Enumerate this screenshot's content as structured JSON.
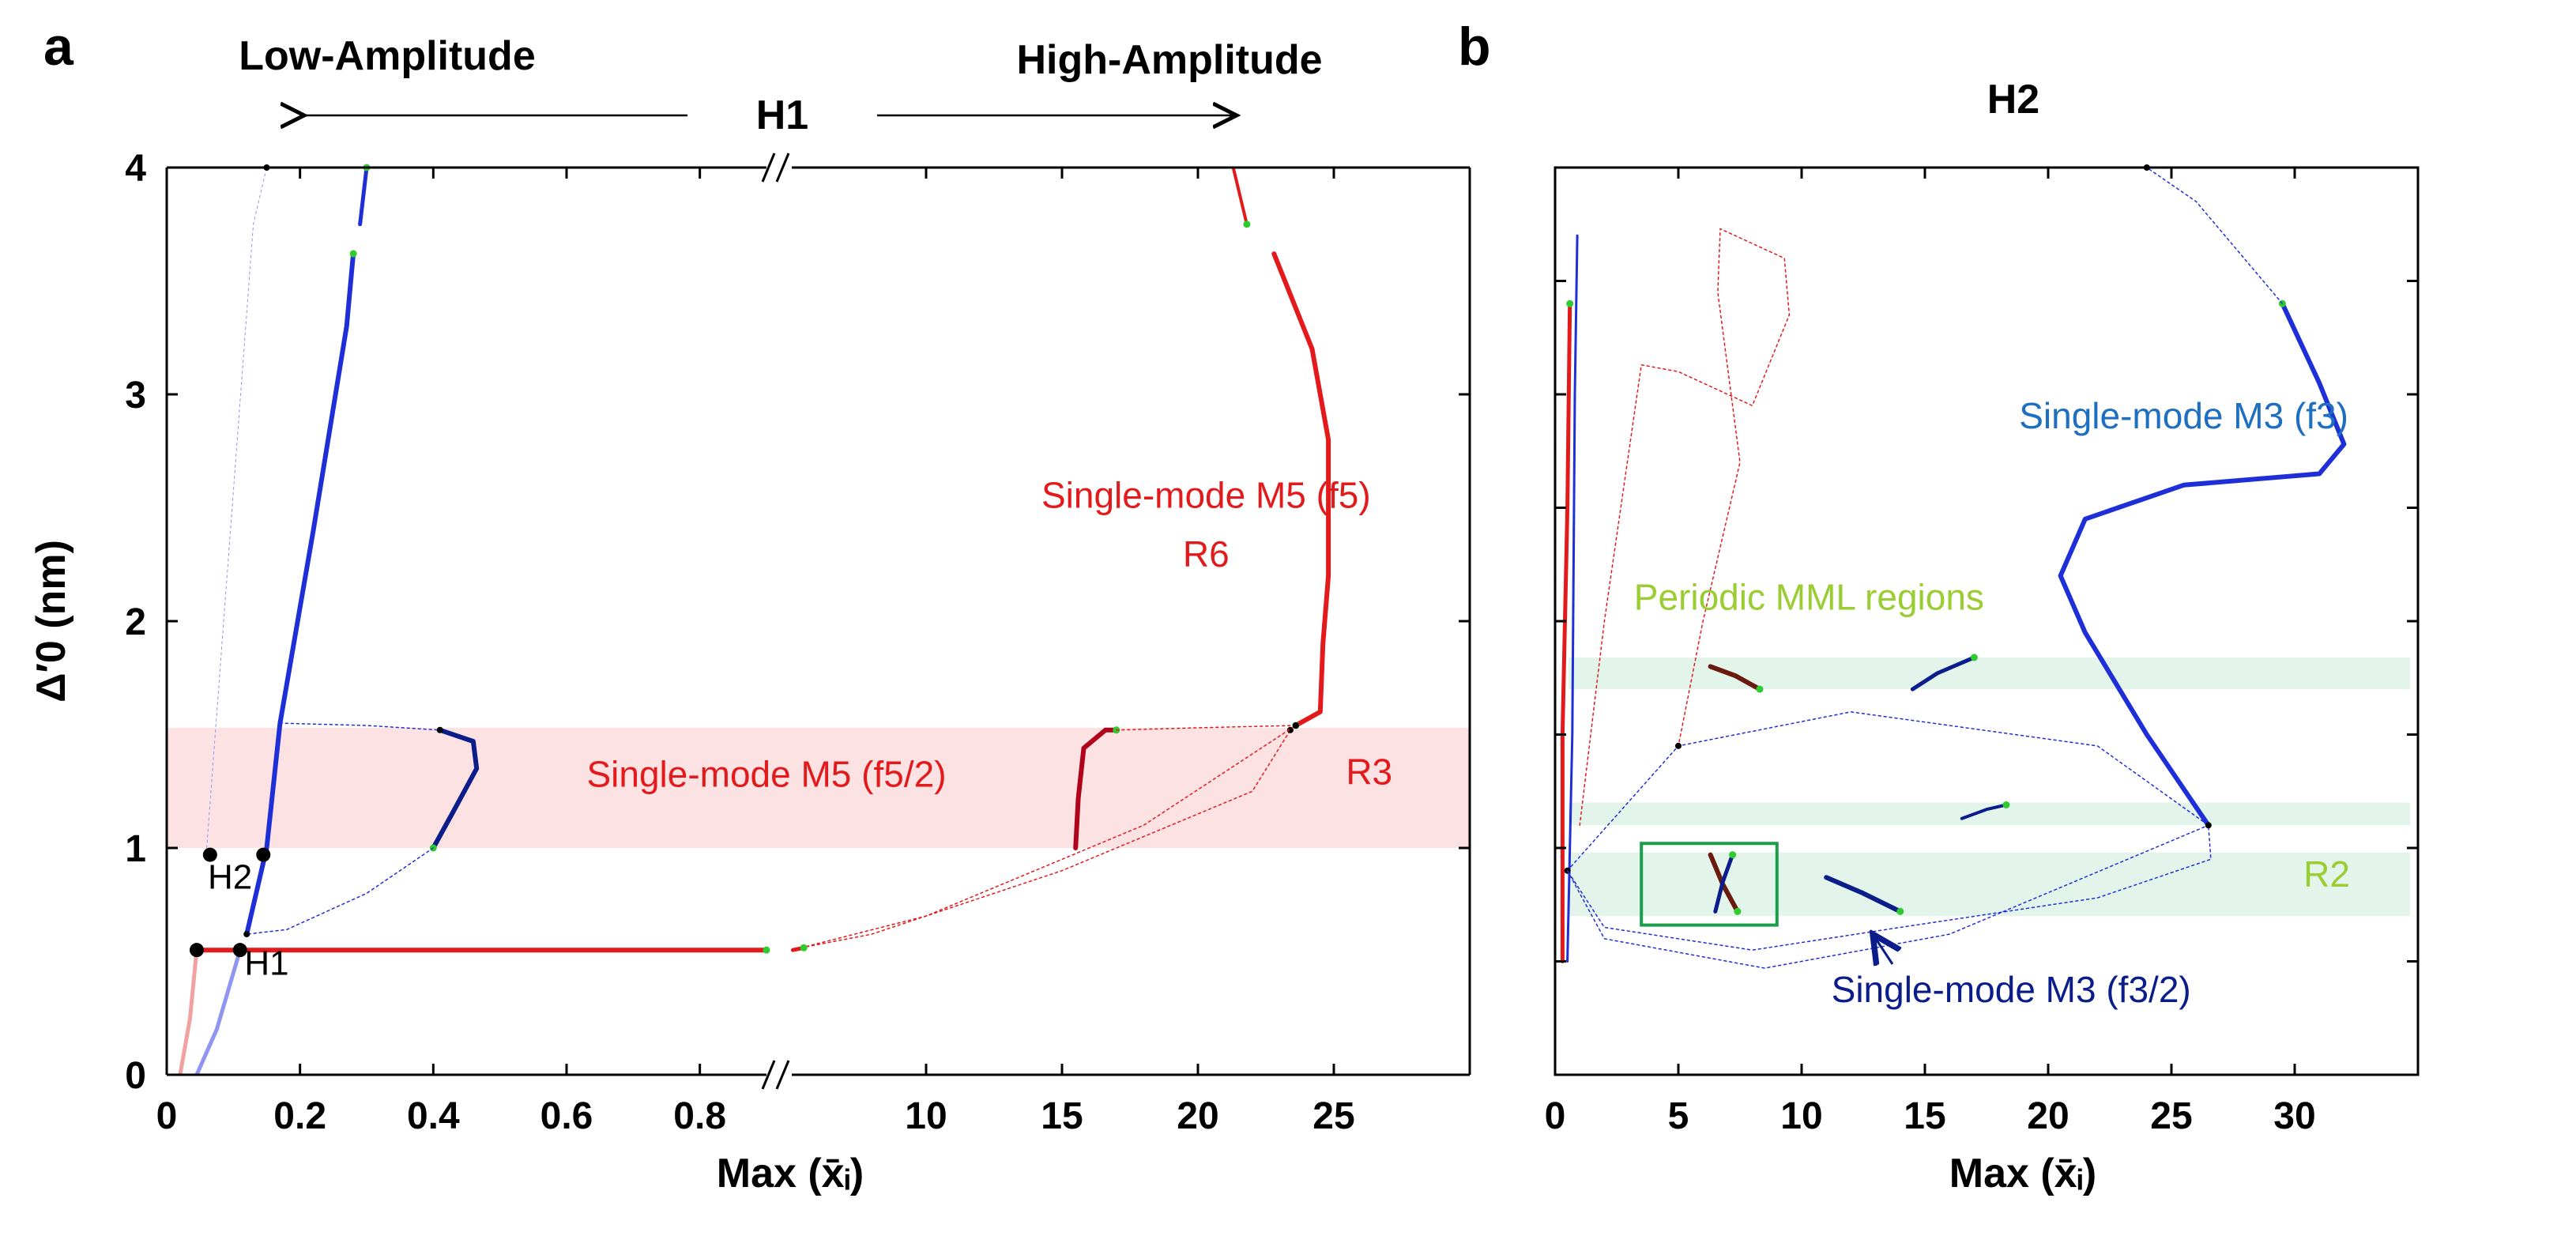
{
  "figure": {
    "panel_a_letter": "a",
    "panel_b_letter": "b",
    "low_amplitude_label": "Low-Amplitude",
    "high_amplitude_label": "High-Amplitude",
    "h1_header": "H1",
    "h2_header": "H2"
  },
  "colors": {
    "red": "#e31a1c",
    "dark_red": "#b0001a",
    "blue": "#1f2fd8",
    "navy": "#0b1d8a",
    "light_blue": "#8f95f0",
    "light_red": "#f2a1a1",
    "brown": "#6b1a10",
    "green": "#2ecc2e",
    "green_text": "#9acd32",
    "band_pink": "#fde2e4",
    "band_green": "#e3f4ea",
    "label_blue": "#1f6fc1",
    "box_green": "#1a9e4a"
  },
  "chart_data": [
    {
      "type": "line",
      "panel": "a",
      "title": "H1",
      "xlabel": "Max (x̄ᵢ)",
      "ylabel": "Δ′0 (nm)",
      "ylim": [
        0,
        4
      ],
      "yticks": [
        "0",
        "1",
        "2",
        "3",
        "4"
      ],
      "x_low_range": [
        0,
        0.9
      ],
      "x_low_ticks": [
        "0",
        "0.2",
        "0.4",
        "0.6",
        "0.8"
      ],
      "x_high_range": [
        5,
        30
      ],
      "x_high_ticks": [
        "10",
        "15",
        "20",
        "25"
      ],
      "bands": [
        {
          "y0": 1.0,
          "y1": 1.53,
          "color": "band_pink"
        }
      ],
      "annotations": [
        {
          "text": "Single-mode M5 (f5)",
          "x": 20.3,
          "y": 2.5,
          "color": "red"
        },
        {
          "text": "R6",
          "x": 20.3,
          "y": 2.24,
          "color": "red"
        },
        {
          "text": "Single-mode M5 (f5/2)",
          "x": 0.9,
          "y": 1.27,
          "color": "red"
        },
        {
          "text": "R3",
          "x": 26.3,
          "y": 1.28,
          "color": "red"
        },
        {
          "text": "H2",
          "x": 0.095,
          "y": 0.82,
          "color": "black"
        },
        {
          "text": "H1",
          "x": 0.15,
          "y": 0.44,
          "color": "black"
        }
      ],
      "markers": [
        {
          "name": "H2",
          "x": 0.065,
          "y": 0.97
        },
        {
          "name": "H2",
          "x": 0.145,
          "y": 0.97
        },
        {
          "name": "H1",
          "x": 0.045,
          "y": 0.55
        },
        {
          "name": "H1",
          "x": 0.11,
          "y": 0.55
        }
      ],
      "series": [
        {
          "name": "light-red-start",
          "color": "light_red",
          "width": 5,
          "points": [
            [
              0.02,
              0.0
            ],
            [
              0.035,
              0.25
            ],
            [
              0.045,
              0.55
            ]
          ]
        },
        {
          "name": "light-blue-start",
          "color": "light_blue",
          "width": 5,
          "points": [
            [
              0.045,
              0.0
            ],
            [
              0.075,
              0.2
            ],
            [
              0.11,
              0.55
            ]
          ]
        },
        {
          "name": "M5 low-amplitude plateau",
          "color": "red",
          "width": 6,
          "points": [
            [
              0.045,
              0.55
            ],
            [
              0.9,
              0.55
            ]
          ]
        },
        {
          "name": "M3 branch",
          "color": "blue",
          "width": 6,
          "points": [
            [
              0.12,
              0.62
            ],
            [
              0.15,
              1.0
            ],
            [
              0.17,
              1.55
            ],
            [
              0.22,
              2.4
            ],
            [
              0.27,
              3.3
            ],
            [
              0.28,
              3.62
            ]
          ]
        },
        {
          "name": "M3 top",
          "color": "blue",
          "width": 5,
          "points": [
            [
              0.29,
              3.75
            ],
            [
              0.3,
              4.0
            ]
          ]
        },
        {
          "name": "M3 f3/2 loop",
          "color": "navy",
          "width": 6,
          "points": [
            [
              0.41,
              1.52
            ],
            [
              0.46,
              1.47
            ],
            [
              0.465,
              1.35
            ],
            [
              0.43,
              1.16
            ],
            [
              0.4,
              1.0
            ]
          ]
        },
        {
          "name": "thin blue loop",
          "color": "blue",
          "width": 1.5,
          "points": [
            [
              0.17,
              1.55
            ],
            [
              0.3,
              1.54
            ],
            [
              0.41,
              1.52
            ]
          ]
        },
        {
          "name": "thin blue lower",
          "color": "blue",
          "width": 1.5,
          "points": [
            [
              0.4,
              1.0
            ],
            [
              0.3,
              0.8
            ],
            [
              0.18,
              0.64
            ],
            [
              0.12,
              0.62
            ]
          ]
        },
        {
          "name": "faint-line",
          "color": "light_blue",
          "width": 1,
          "points": [
            [
              0.06,
              1.0
            ],
            [
              0.13,
              3.75
            ],
            [
              0.15,
              4.0
            ]
          ]
        },
        {
          "name": "M5 f5 upper",
          "color": "red",
          "width": 6,
          "points": [
            [
              22.8,
              3.62
            ],
            [
              24.2,
              3.2
            ],
            [
              24.8,
              2.8
            ],
            [
              24.8,
              2.2
            ],
            [
              24.6,
              1.9
            ],
            [
              24.5,
              1.6
            ],
            [
              23.6,
              1.54
            ]
          ]
        },
        {
          "name": "M5 top",
          "color": "red",
          "width": 4,
          "points": [
            [
              21.3,
              4.0
            ],
            [
              21.8,
              3.75
            ]
          ]
        },
        {
          "name": "M5 f5/2 bend",
          "color": "dark_red",
          "width": 6,
          "points": [
            [
              15.5,
              1.0
            ],
            [
              15.6,
              1.22
            ],
            [
              15.8,
              1.44
            ],
            [
              16.6,
              1.52
            ],
            [
              17.0,
              1.52
            ]
          ]
        },
        {
          "name": "thin red upper",
          "color": "red",
          "width": 1.5,
          "points": [
            [
              17.0,
              1.52
            ],
            [
              20.0,
              1.53
            ],
            [
              23.6,
              1.54
            ]
          ]
        },
        {
          "name": "thin red lower",
          "color": "red",
          "width": 1.5,
          "points": [
            [
              5.4,
              0.56
            ],
            [
              8.0,
              0.62
            ],
            [
              15.0,
              0.9
            ],
            [
              22.0,
              1.25
            ],
            [
              23.4,
              1.52
            ]
          ]
        },
        {
          "name": "thin red lower 2",
          "color": "red",
          "width": 1.5,
          "points": [
            [
              5.4,
              0.56
            ],
            [
              10.0,
              0.7
            ],
            [
              18.0,
              1.1
            ],
            [
              23.6,
              1.54
            ]
          ]
        },
        {
          "name": "M5 high start",
          "color": "red",
          "width": 5,
          "points": [
            [
              5.1,
              0.55
            ],
            [
              5.5,
              0.56
            ]
          ]
        }
      ]
    },
    {
      "type": "line",
      "panel": "b",
      "title": "H2",
      "xlabel": "Max (x̄ᵢ)",
      "ylabel": "",
      "ylim": [
        0,
        4
      ],
      "xlim": [
        0,
        35
      ],
      "xticks": [
        "0",
        "5",
        "10",
        "15",
        "20",
        "25",
        "30"
      ],
      "bands": [
        {
          "y0": 1.7,
          "y1": 1.84,
          "color": "band_green"
        },
        {
          "y0": 1.1,
          "y1": 1.2,
          "color": "band_green"
        },
        {
          "y0": 0.7,
          "y1": 0.98,
          "color": "band_green"
        }
      ],
      "annotations": [
        {
          "text": "Single-mode M3 (f3)",
          "x": 25.5,
          "y": 2.85,
          "color": "label_blue"
        },
        {
          "text": "Periodic MML regions",
          "x": 10.3,
          "y": 2.05,
          "color": "green_text"
        },
        {
          "text": "R2",
          "x": 31.3,
          "y": 0.83,
          "color": "green_text"
        },
        {
          "text": "Single-mode M3 (f3/2)",
          "x": 18.5,
          "y": 0.32,
          "color": "navy"
        }
      ],
      "zoom_box": {
        "x0": 3.5,
        "x1": 9.0,
        "y0": 0.66,
        "y1": 1.02
      },
      "series": [
        {
          "name": "M3 f3",
          "color": "blue",
          "width": 6,
          "points": [
            [
              26.5,
              1.1
            ],
            [
              24.0,
              1.5
            ],
            [
              21.5,
              1.95
            ],
            [
              20.5,
              2.2
            ],
            [
              21.5,
              2.45
            ],
            [
              25.5,
              2.6
            ],
            [
              31.0,
              2.65
            ],
            [
              32.0,
              2.78
            ],
            [
              31.0,
              3.05
            ],
            [
              29.5,
              3.4
            ]
          ]
        },
        {
          "name": "M3 dotted top",
          "color": "blue",
          "width": 1.5,
          "points": [
            [
              29.5,
              3.4
            ],
            [
              26.0,
              3.85
            ],
            [
              24.0,
              4.0
            ]
          ]
        },
        {
          "name": "M3 f3/2",
          "color": "navy",
          "width": 6,
          "points": [
            [
              11.0,
              0.87
            ],
            [
              12.5,
              0.8
            ],
            [
              14.0,
              0.72
            ]
          ]
        },
        {
          "name": "low-x red",
          "color": "red",
          "width": 5,
          "points": [
            [
              0.3,
              0.5
            ],
            [
              0.3,
              1.5
            ],
            [
              0.5,
              2.5
            ],
            [
              0.6,
              3.4
            ]
          ]
        },
        {
          "name": "low-x blue",
          "color": "blue",
          "width": 3,
          "points": [
            [
              0.5,
              0.5
            ],
            [
              0.7,
              1.5
            ],
            [
              0.8,
              3.0
            ],
            [
              0.9,
              3.7
            ]
          ]
        },
        {
          "name": "MML brown 1",
          "color": "brown",
          "width": 6,
          "points": [
            [
              6.3,
              1.8
            ],
            [
              7.3,
              1.76
            ],
            [
              8.3,
              1.7
            ]
          ]
        },
        {
          "name": "MML brown 2",
          "color": "brown",
          "width": 6,
          "points": [
            [
              6.3,
              0.97
            ],
            [
              6.8,
              0.84
            ],
            [
              7.4,
              0.72
            ]
          ]
        },
        {
          "name": "MML navy 1",
          "color": "navy",
          "width": 5,
          "points": [
            [
              14.5,
              1.7
            ],
            [
              15.5,
              1.77
            ],
            [
              17.0,
              1.84
            ]
          ]
        },
        {
          "name": "MML navy 2",
          "color": "navy",
          "width": 5,
          "points": [
            [
              6.5,
              0.72
            ],
            [
              6.8,
              0.85
            ],
            [
              7.2,
              0.97
            ]
          ]
        },
        {
          "name": "MML navy 3",
          "color": "navy",
          "width": 4,
          "points": [
            [
              16.5,
              1.13
            ],
            [
              17.5,
              1.17
            ],
            [
              18.3,
              1.19
            ]
          ]
        },
        {
          "name": "big loop",
          "color": "blue",
          "width": 1.5,
          "points": [
            [
              0.5,
              0.9
            ],
            [
              5.0,
              1.45
            ],
            [
              12.0,
              1.6
            ],
            [
              22.0,
              1.45
            ],
            [
              26.5,
              1.1
            ],
            [
              26.6,
              0.95
            ],
            [
              22.0,
              0.78
            ],
            [
              14.0,
              0.65
            ],
            [
              8.0,
              0.55
            ],
            [
              2.0,
              0.65
            ],
            [
              0.5,
              0.9
            ]
          ]
        },
        {
          "name": "big loop lower",
          "color": "blue",
          "width": 1.5,
          "points": [
            [
              0.5,
              0.9
            ],
            [
              2.0,
              0.6
            ],
            [
              8.5,
              0.47
            ],
            [
              16.0,
              0.62
            ],
            [
              26.5,
              1.1
            ]
          ]
        },
        {
          "name": "upper red dotted",
          "color": "red",
          "width": 1.5,
          "points": [
            [
              1.0,
              1.1
            ],
            [
              2.0,
              2.0
            ],
            [
              3.5,
              3.13
            ],
            [
              5.0,
              3.1
            ],
            [
              8.0,
              2.95
            ],
            [
              9.5,
              3.35
            ],
            [
              9.3,
              3.6
            ],
            [
              6.7,
              3.73
            ],
            [
              6.6,
              3.45
            ],
            [
              7.5,
              2.7
            ],
            [
              6.0,
              2.0
            ],
            [
              5.0,
              1.45
            ]
          ]
        }
      ]
    }
  ]
}
